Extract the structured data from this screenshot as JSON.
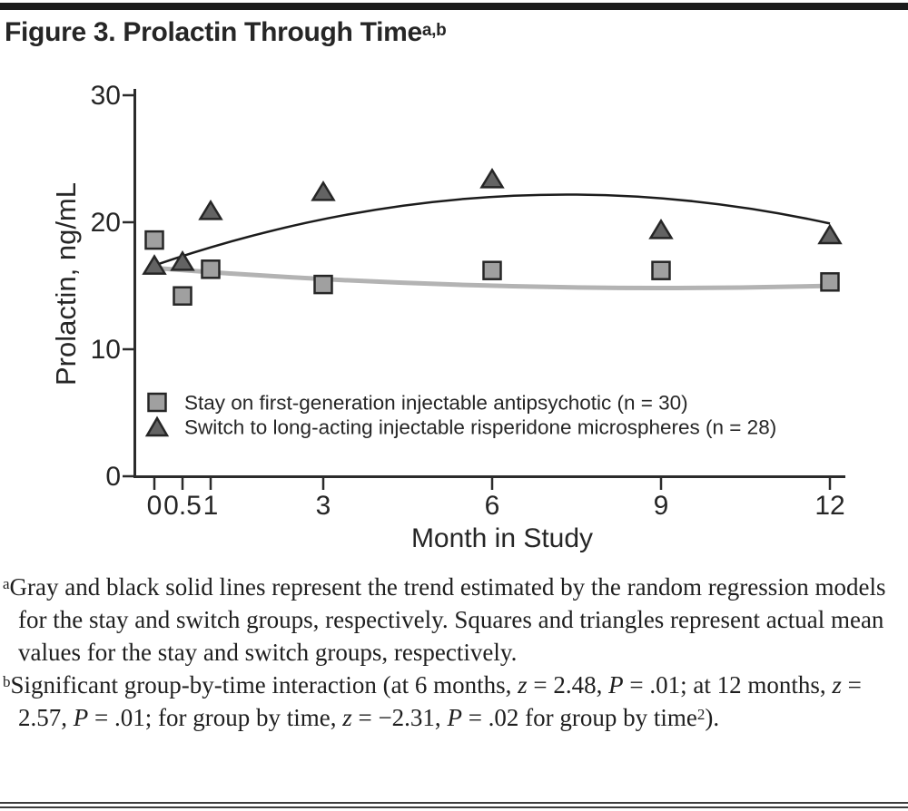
{
  "figure": {
    "title": "Figure 3. Prolactin Through Time",
    "title_superscript": "a,b"
  },
  "chart_data": {
    "type": "scatter",
    "xlabel": "Month in Study",
    "ylabel": "Prolactin, ng/mL",
    "xlim": [
      -0.35,
      12.3
    ],
    "ylim": [
      0,
      30
    ],
    "grid": false,
    "x_ticks": [
      0,
      0.5,
      1,
      3,
      6,
      9,
      12
    ],
    "x_tick_labels": [
      "0",
      "0.5",
      "1",
      "3",
      "6",
      "9",
      "12"
    ],
    "y_ticks": [
      0,
      10,
      20,
      30
    ],
    "y_tick_labels": [
      "0",
      "10",
      "20",
      "30"
    ],
    "x": [
      0,
      0.5,
      1,
      3,
      6,
      9,
      12
    ],
    "series": [
      {
        "name": "stay",
        "label": "Stay on first-generation injectable antipsychotic (n = 30)",
        "marker": "square",
        "marker_fill": "#a0a0a0",
        "marker_stroke": "#262626",
        "values": [
          18.6,
          14.2,
          16.3,
          15.1,
          16.2,
          16.2,
          15.3
        ]
      },
      {
        "name": "switch",
        "label": "Switch to long-acting injectable risperidone microspheres (n = 28)",
        "marker": "triangle",
        "marker_fill": "#636363",
        "marker_stroke": "#262626",
        "values": [
          16.6,
          16.9,
          20.9,
          22.4,
          23.4,
          19.4,
          19.0
        ]
      }
    ],
    "trend_lines": [
      {
        "series": "stay",
        "color": "#b3b3b3",
        "stroke_width": 5,
        "x": [
          0,
          2,
          4,
          6,
          8,
          10,
          12
        ],
        "y": [
          16.4,
          15.8,
          15.3,
          15.0,
          14.8,
          14.9,
          15.0
        ]
      },
      {
        "series": "switch",
        "color": "#1c1c1c",
        "stroke_width": 2.5,
        "x": [
          0,
          2,
          4,
          6,
          8,
          10,
          12
        ],
        "y": [
          16.6,
          19.3,
          21.1,
          22.0,
          22.2,
          21.5,
          19.9
        ]
      }
    ],
    "legend_position": "inside-lower-left"
  },
  "footnotes": {
    "a": [
      {
        "t": "a",
        "sup": true
      },
      {
        "t": "Gray and black solid lines represent the trend estimated by the random regression models for the stay and switch groups, respectively. Squares and triangles represent actual mean values for the stay and switch groups, respectively."
      }
    ],
    "b": [
      {
        "t": "b",
        "sup": true
      },
      {
        "t": "Significant group-by-time interaction (at 6 months, "
      },
      {
        "t": "z",
        "i": true
      },
      {
        "t": " = 2.48, "
      },
      {
        "t": "P",
        "i": true
      },
      {
        "t": " = .01; at 12 months, "
      },
      {
        "t": "z",
        "i": true
      },
      {
        "t": " = 2.57, "
      },
      {
        "t": "P",
        "i": true
      },
      {
        "t": " = .01; for group by time, "
      },
      {
        "t": "z",
        "i": true
      },
      {
        "t": " = −2.31, "
      },
      {
        "t": "P",
        "i": true
      },
      {
        "t": " = .02 for group by time"
      },
      {
        "t": "2",
        "sup": true
      },
      {
        "t": ")."
      }
    ]
  }
}
